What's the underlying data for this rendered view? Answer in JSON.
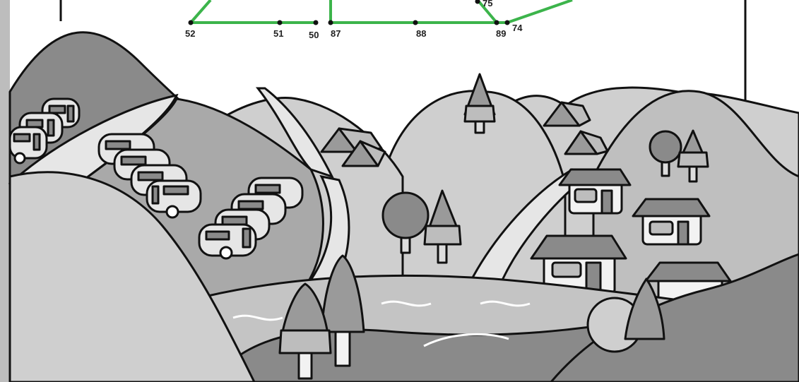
{
  "puzzle": {
    "line_color": "#3cb44b",
    "points": [
      {
        "label": "52"
      },
      {
        "label": "51"
      },
      {
        "label": "50"
      },
      {
        "label": "87"
      },
      {
        "label": "88"
      },
      {
        "label": "89"
      },
      {
        "label": "74"
      },
      {
        "label": "75"
      }
    ]
  },
  "scene": {
    "palette": {
      "outline": "#111111",
      "hill_light": "#cfcfcf",
      "hill_mid": "#a9a9a9",
      "hill_dark": "#8a8a8a",
      "path": "#e6e6e6",
      "water": "#c4c4c4",
      "paper": "#ffffff",
      "left_strip": "#bdbdbd"
    },
    "elements": [
      "caravans",
      "tents",
      "trees",
      "houses",
      "river",
      "hills"
    ]
  }
}
